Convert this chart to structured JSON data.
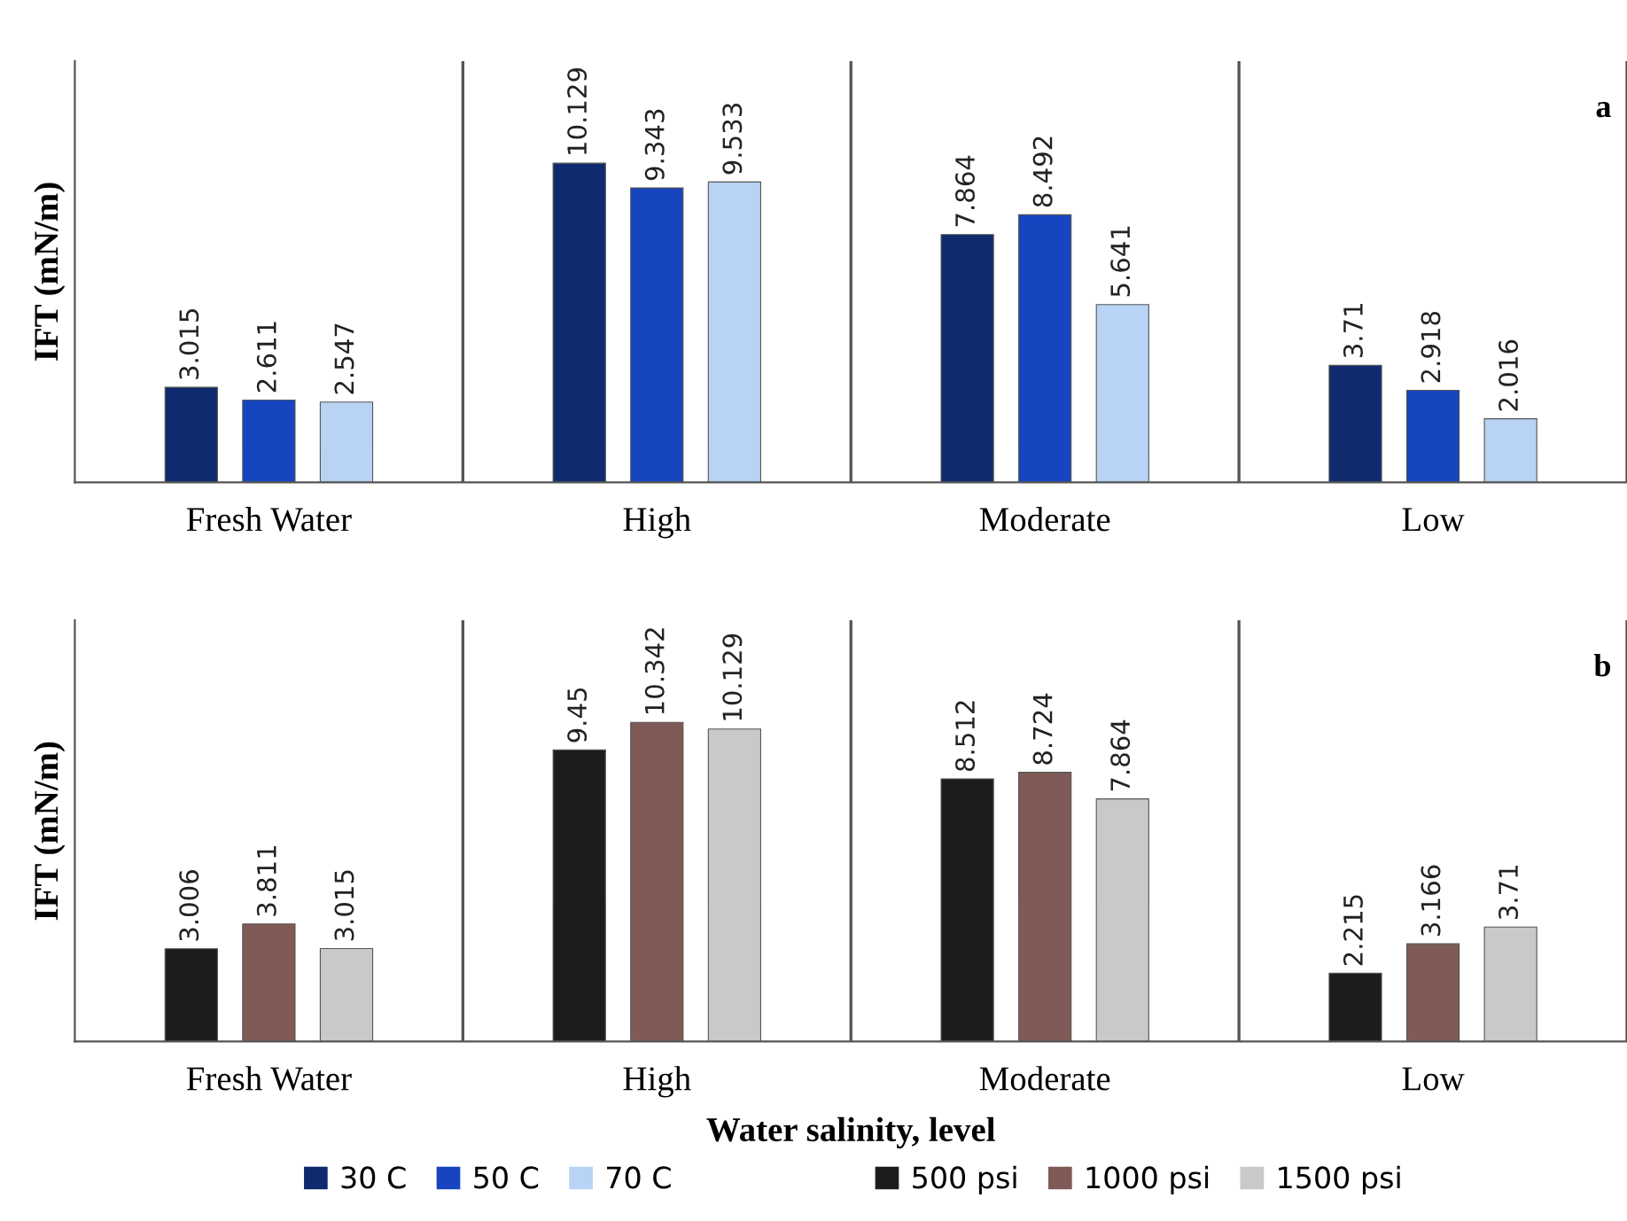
{
  "chart_data": [
    {
      "type": "bar",
      "ylabel": "IFT (mN/m)",
      "categories": [
        "Fresh Water",
        "High",
        "Moderate",
        "Low"
      ],
      "series": [
        {
          "name": "30 C",
          "color": "#0f2a6e",
          "values": [
            3.015,
            10.129,
            7.864,
            3.71
          ]
        },
        {
          "name": "50 C",
          "color": "#1745c0",
          "values": [
            2.611,
            9.343,
            8.492,
            2.918
          ]
        },
        {
          "name": "70 C",
          "color": "#b8d3f3",
          "values": [
            2.547,
            9.533,
            5.641,
            2.016
          ]
        }
      ],
      "data_labels": true,
      "grid": "x",
      "legend": "bottom",
      "annotations": [
        "a"
      ]
    },
    {
      "type": "bar",
      "ylabel": "IFT (mN/m)",
      "xlabel": "Water salinity, level",
      "categories": [
        "Fresh Water",
        "High",
        "Moderate",
        "Low"
      ],
      "series": [
        {
          "name": "500 psi",
          "color": "#1c1c1c",
          "values": [
            3.006,
            9.45,
            8.512,
            2.215
          ]
        },
        {
          "name": "1000 psi",
          "color": "#7f5a56",
          "values": [
            3.811,
            10.342,
            8.724,
            3.166
          ]
        },
        {
          "name": "1500 psi",
          "color": "#c9c9c9",
          "values": [
            3.015,
            10.129,
            7.864,
            3.71
          ]
        }
      ],
      "data_labels": true,
      "grid": "x",
      "legend": "bottom",
      "annotations": [
        "b"
      ]
    }
  ]
}
